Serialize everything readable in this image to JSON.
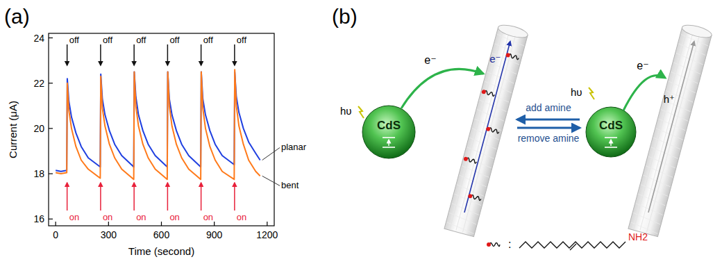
{
  "chart_data": {
    "type": "line",
    "xlabel": "Time (second)",
    "ylabel": "Current (μA)",
    "xlim": [
      -40,
      1240
    ],
    "ylim": [
      15.7,
      24.2
    ],
    "xticks": [
      0,
      300,
      600,
      900,
      1200
    ],
    "yticks": [
      16,
      18,
      20,
      22,
      24
    ],
    "x": [
      0,
      30,
      63,
      66,
      75,
      90,
      115,
      145,
      185,
      253,
      256,
      265,
      280,
      305,
      335,
      375,
      443,
      446,
      455,
      470,
      495,
      525,
      565,
      633,
      636,
      645,
      660,
      685,
      715,
      755,
      823,
      826,
      835,
      850,
      875,
      905,
      945,
      1013,
      1016,
      1025,
      1040,
      1065,
      1095,
      1135,
      1160
    ],
    "series": [
      {
        "name": "planar",
        "color": "#1f3fe0",
        "values": [
          18.15,
          18.1,
          18.15,
          22.2,
          21.2,
          20.5,
          19.8,
          19.2,
          18.7,
          18.3,
          22.4,
          21.3,
          20.6,
          19.9,
          19.3,
          18.8,
          18.3,
          22.5,
          21.4,
          20.6,
          19.9,
          19.3,
          18.8,
          18.3,
          22.5,
          21.3,
          20.6,
          19.9,
          19.3,
          18.8,
          18.3,
          22.5,
          21.3,
          20.6,
          19.9,
          19.3,
          18.8,
          18.4,
          22.5,
          21.4,
          20.7,
          20.0,
          19.4,
          18.9,
          18.6
        ]
      },
      {
        "name": "bent",
        "color": "#ff7a1a",
        "values": [
          18.05,
          18.0,
          18.05,
          22.0,
          20.8,
          20.0,
          19.2,
          18.6,
          18.2,
          17.8,
          22.3,
          20.9,
          20.1,
          19.3,
          18.7,
          18.2,
          17.75,
          22.5,
          21.0,
          20.1,
          19.3,
          18.7,
          18.2,
          17.75,
          22.5,
          21.0,
          20.1,
          19.3,
          18.7,
          18.2,
          17.75,
          22.5,
          20.9,
          20.0,
          19.2,
          18.6,
          18.1,
          17.75,
          22.6,
          21.0,
          20.1,
          19.3,
          18.6,
          18.1,
          17.9
        ]
      }
    ],
    "annotations": [
      {
        "text": "off",
        "x": 65,
        "color": "#111111"
      },
      {
        "text": "off",
        "x": 255,
        "color": "#111111"
      },
      {
        "text": "off",
        "x": 445,
        "color": "#111111"
      },
      {
        "text": "off",
        "x": 635,
        "color": "#111111"
      },
      {
        "text": "off",
        "x": 825,
        "color": "#111111"
      },
      {
        "text": "off",
        "x": 1015,
        "color": "#111111"
      },
      {
        "text": "on",
        "x": 65,
        "color": "#e8203a"
      },
      {
        "text": "on",
        "x": 255,
        "color": "#e8203a"
      },
      {
        "text": "on",
        "x": 445,
        "color": "#e8203a"
      },
      {
        "text": "on",
        "x": 635,
        "color": "#e8203a"
      },
      {
        "text": "on",
        "x": 825,
        "color": "#e8203a"
      },
      {
        "text": "on",
        "x": 1015,
        "color": "#e8203a"
      }
    ]
  },
  "panel_labels": [
    "(a)",
    "(b)"
  ],
  "diagram": {
    "left": {
      "particle": "CdS",
      "light": "hυ",
      "transfer": "e⁻",
      "carrier": "e⁻"
    },
    "right": {
      "particle": "CdS",
      "light": "hυ",
      "transfer": "e⁻",
      "carrier": "h⁺"
    },
    "forward": "add amine",
    "backward": "remove amine",
    "key": {
      "separator": ":",
      "group": "NH2"
    }
  }
}
